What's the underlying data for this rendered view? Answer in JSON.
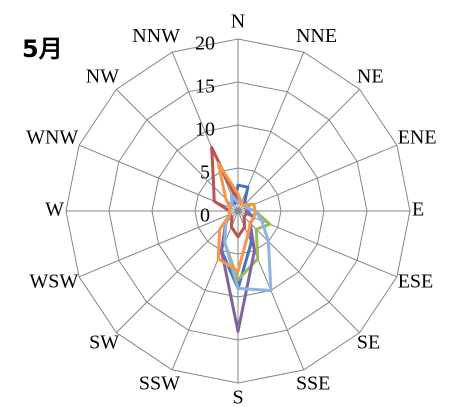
{
  "chart_data": {
    "type": "radar",
    "title": "5月",
    "categories": [
      "N",
      "NNE",
      "NE",
      "ENE",
      "E",
      "ESE",
      "SE",
      "SSE",
      "S",
      "SSW",
      "SW",
      "WSW",
      "W",
      "WNW",
      "NW",
      "NNW"
    ],
    "ylim": [
      0,
      20
    ],
    "yticks": [
      0,
      5,
      10,
      15,
      20
    ],
    "grid": true,
    "series": [
      {
        "color": "#4472c4",
        "values": [
          3,
          3,
          1,
          1,
          1,
          2,
          2,
          4,
          9,
          5,
          2,
          1,
          1,
          1,
          1,
          1
        ]
      },
      {
        "color": "#c0504d",
        "values": [
          1,
          1,
          1,
          1,
          1,
          1,
          1,
          2,
          3,
          2,
          1,
          1,
          1,
          3,
          4,
          8
        ]
      },
      {
        "color": "#9bbb59",
        "values": [
          1,
          1,
          1,
          1,
          2,
          4,
          3,
          6,
          8,
          4,
          2,
          1,
          1,
          1,
          1,
          1
        ]
      },
      {
        "color": "#8064a2",
        "values": [
          1,
          1,
          1,
          1,
          1,
          2,
          2,
          5,
          14,
          5,
          2,
          1,
          1,
          1,
          1,
          1
        ]
      },
      {
        "color": "#8eb4e3",
        "values": [
          1,
          1,
          1,
          1,
          2,
          3,
          5,
          10,
          9,
          4,
          2,
          1,
          1,
          1,
          1,
          2
        ]
      },
      {
        "color": "#f79646",
        "values": [
          2,
          1,
          1,
          2,
          2,
          2,
          2,
          3,
          7,
          6,
          3,
          1,
          1,
          1,
          2,
          6
        ]
      }
    ]
  }
}
